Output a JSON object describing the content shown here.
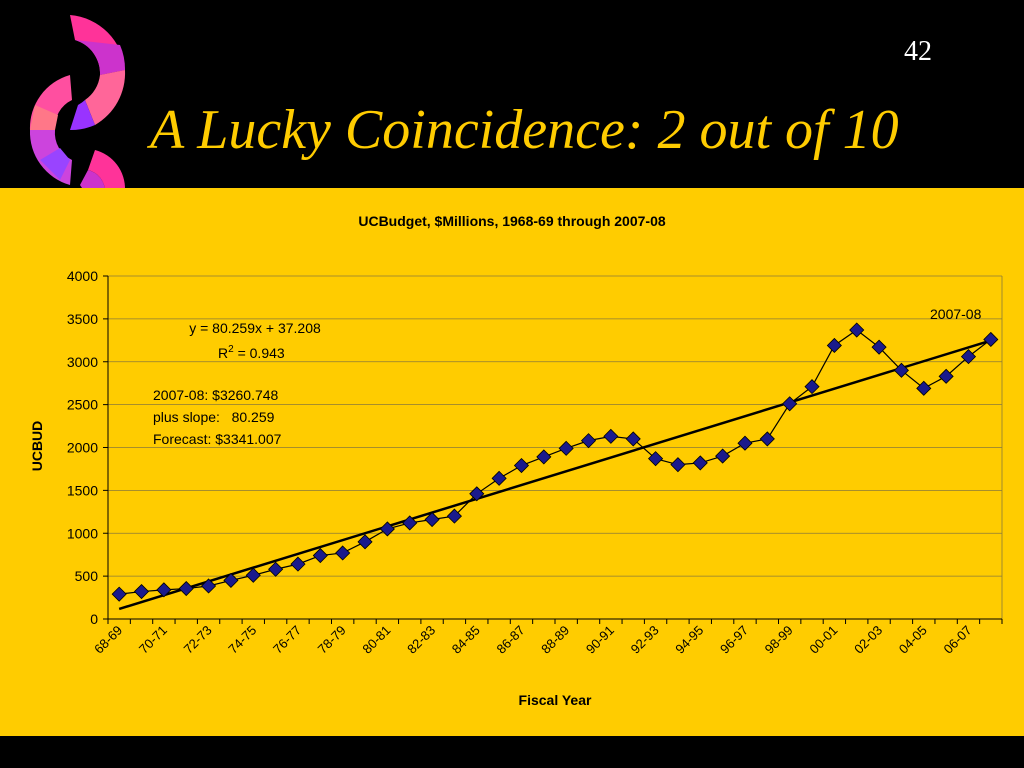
{
  "slide": {
    "number": "42",
    "title": "A Lucky Coincidence: 2 out of 10",
    "colors": {
      "background": "#000000",
      "title": "#ffcc00",
      "panel": "#ffcc00",
      "marker": "#1a1a8c",
      "trend": "#000000"
    }
  },
  "chart_data": {
    "type": "line",
    "title": "UCBudget, $Millions, 1968-69 through 2007-08",
    "xlabel": "Fiscal Year",
    "ylabel": "UCBUD",
    "ylim": [
      0,
      4000
    ],
    "yticks": [
      0,
      500,
      1000,
      1500,
      2000,
      2500,
      3000,
      3500,
      4000
    ],
    "grid": true,
    "categories": [
      "68-69",
      "69-70",
      "70-71",
      "71-72",
      "72-73",
      "73-74",
      "74-75",
      "75-76",
      "76-77",
      "77-78",
      "78-79",
      "79-80",
      "80-81",
      "81-82",
      "82-83",
      "83-84",
      "84-85",
      "85-86",
      "86-87",
      "87-88",
      "88-89",
      "89-90",
      "90-91",
      "91-92",
      "92-93",
      "93-94",
      "94-95",
      "95-96",
      "96-97",
      "97-98",
      "98-99",
      "99-00",
      "00-01",
      "01-02",
      "02-03",
      "03-04",
      "04-05",
      "05-06",
      "06-07",
      "07-08"
    ],
    "tick_labels_shown": [
      "68-69",
      "70-71",
      "72-73",
      "74-75",
      "76-77",
      "78-79",
      "80-81",
      "82-83",
      "84-85",
      "86-87",
      "88-89",
      "90-91",
      "92-93",
      "94-95",
      "96-97",
      "98-99",
      "00-01",
      "02-03",
      "04-05",
      "06-07"
    ],
    "series": [
      {
        "name": "UCBudget",
        "style": "line-with-diamond-markers",
        "values": [
          290,
          320,
          340,
          355,
          385,
          450,
          510,
          580,
          640,
          740,
          770,
          900,
          1050,
          1120,
          1160,
          1200,
          1460,
          1640,
          1790,
          1890,
          1990,
          2080,
          2130,
          2100,
          1870,
          1800,
          1820,
          1900,
          2050,
          2100,
          2510,
          2710,
          3190,
          3370,
          3170,
          2900,
          2690,
          2830,
          3060,
          3260
        ]
      },
      {
        "name": "Linear trend",
        "style": "line",
        "slope": 80.259,
        "intercept": 37.208
      }
    ],
    "annotations": {
      "equation": "y = 80.259x + 37.208",
      "r2_prefix": "R",
      "r2_sup": "2",
      "r2_value": " = 0.943",
      "note_line1": "2007-08: $3260.748",
      "note_line2": "plus slope:   80.259",
      "note_line3": "Forecast: $3341.007",
      "point_label": "2007-08"
    }
  }
}
